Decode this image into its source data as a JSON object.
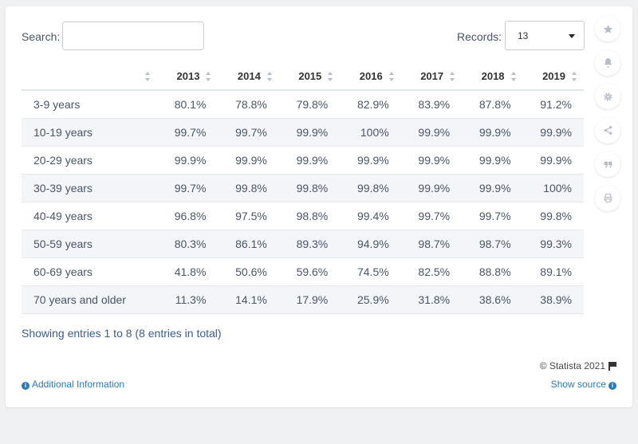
{
  "controls": {
    "search_label": "Search:",
    "search_value": "",
    "records_label": "Records:",
    "records_value": "13"
  },
  "table": {
    "columns": [
      "",
      "2013",
      "2014",
      "2015",
      "2016",
      "2017",
      "2018",
      "2019"
    ],
    "rows": [
      {
        "label": "3-9 years",
        "cells": [
          "80.1%",
          "78.8%",
          "79.8%",
          "82.9%",
          "83.9%",
          "87.8%",
          "91.2%"
        ]
      },
      {
        "label": "10-19 years",
        "cells": [
          "99.7%",
          "99.7%",
          "99.9%",
          "100%",
          "99.9%",
          "99.9%",
          "99.9%"
        ]
      },
      {
        "label": "20-29 years",
        "cells": [
          "99.9%",
          "99.9%",
          "99.9%",
          "99.9%",
          "99.9%",
          "99.9%",
          "99.9%"
        ]
      },
      {
        "label": "30-39 years",
        "cells": [
          "99.7%",
          "99.8%",
          "99.8%",
          "99.8%",
          "99.9%",
          "99.9%",
          "100%"
        ]
      },
      {
        "label": "40-49 years",
        "cells": [
          "96.8%",
          "97.5%",
          "98.8%",
          "99.4%",
          "99.7%",
          "99.7%",
          "99.8%"
        ]
      },
      {
        "label": "50-59 years",
        "cells": [
          "80.3%",
          "86.1%",
          "89.3%",
          "94.9%",
          "98.7%",
          "98.7%",
          "99.3%"
        ]
      },
      {
        "label": "60-69 years",
        "cells": [
          "41.8%",
          "50.6%",
          "59.6%",
          "74.5%",
          "82.5%",
          "88.8%",
          "89.1%"
        ]
      },
      {
        "label": "70 years and older",
        "cells": [
          "11.3%",
          "14.1%",
          "17.9%",
          "25.9%",
          "31.8%",
          "38.6%",
          "38.9%"
        ]
      }
    ]
  },
  "footer": {
    "entries_text": "Showing entries 1 to 8 (8 entries in total)",
    "copyright": "© Statista 2021",
    "additional_info": "Additional Information",
    "show_source": "Show source"
  },
  "sidebar_icons": [
    "star-icon",
    "bell-icon",
    "gear-icon",
    "share-icon",
    "quote-icon",
    "print-icon"
  ],
  "chart_data": {
    "type": "table",
    "categories": [
      "3-9 years",
      "10-19 years",
      "20-29 years",
      "30-39 years",
      "40-49 years",
      "50-59 years",
      "60-69 years",
      "70 years and older"
    ],
    "x": [
      "2013",
      "2014",
      "2015",
      "2016",
      "2017",
      "2018",
      "2019"
    ],
    "series": [
      {
        "name": "3-9 years",
        "values": [
          80.1,
          78.8,
          79.8,
          82.9,
          83.9,
          87.8,
          91.2
        ]
      },
      {
        "name": "10-19 years",
        "values": [
          99.7,
          99.7,
          99.9,
          100,
          99.9,
          99.9,
          99.9
        ]
      },
      {
        "name": "20-29 years",
        "values": [
          99.9,
          99.9,
          99.9,
          99.9,
          99.9,
          99.9,
          99.9
        ]
      },
      {
        "name": "30-39 years",
        "values": [
          99.7,
          99.8,
          99.8,
          99.8,
          99.9,
          99.9,
          100
        ]
      },
      {
        "name": "40-49 years",
        "values": [
          96.8,
          97.5,
          98.8,
          99.4,
          99.7,
          99.7,
          99.8
        ]
      },
      {
        "name": "50-59 years",
        "values": [
          80.3,
          86.1,
          89.3,
          94.9,
          98.7,
          98.7,
          99.3
        ]
      },
      {
        "name": "60-69 years",
        "values": [
          41.8,
          50.6,
          59.6,
          74.5,
          82.5,
          88.8,
          89.1
        ]
      },
      {
        "name": "70 years and older",
        "values": [
          11.3,
          14.1,
          17.9,
          25.9,
          31.8,
          38.6,
          38.9
        ]
      }
    ]
  }
}
